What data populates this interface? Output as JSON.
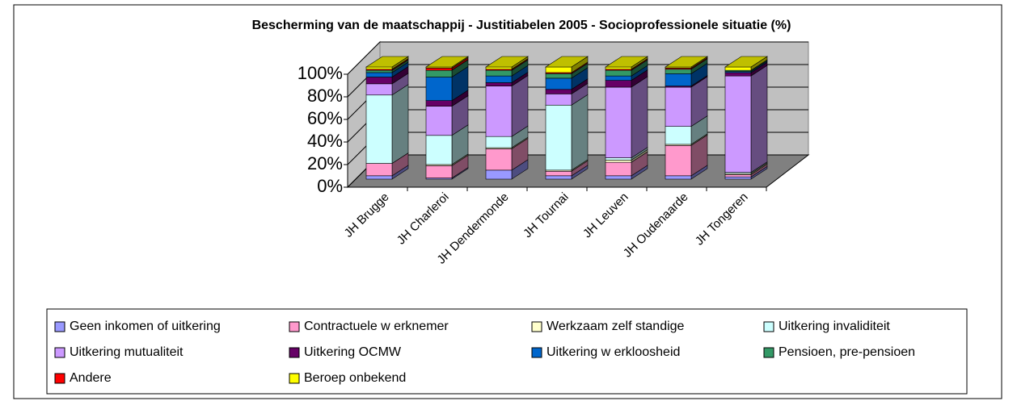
{
  "chart_data": {
    "type": "bar3d_stacked",
    "title": "Bescherming van de maatschappij - Justitiabelen 2005 - Socioprofessionele situatie (%)",
    "categories": [
      "JH Brugge",
      "JH Charleroi",
      "JH Dendermonde",
      "JH Tournai",
      "JH Leuven",
      "JH Oudenaarde",
      "JH Tongeren"
    ],
    "series": [
      {
        "name": "Geen inkomen of uitkering",
        "color": "#9999ff",
        "values": [
          3,
          1,
          8,
          3,
          3,
          3,
          2
        ]
      },
      {
        "name": "Contractuele w erknemer",
        "color": "#ff99cc",
        "values": [
          11,
          11,
          19,
          4,
          12,
          27,
          2
        ]
      },
      {
        "name": "Werkzaam zelf standige",
        "color": "#ffffcc",
        "values": [
          0,
          1,
          1,
          1,
          2,
          1,
          1
        ]
      },
      {
        "name": "Uitkering invaliditeit",
        "color": "#ccffff",
        "values": [
          61,
          26,
          10,
          58,
          2,
          16,
          1
        ]
      },
      {
        "name": "Uitkering mutualiteit",
        "color": "#cc99ff",
        "values": [
          10,
          26,
          45,
          10,
          63,
          35,
          86
        ]
      },
      {
        "name": "Uitkering OCMW",
        "color": "#660066",
        "values": [
          6,
          5,
          3,
          4,
          6,
          1,
          3
        ]
      },
      {
        "name": "Uitkering w erkloosheid",
        "color": "#0066cc",
        "values": [
          4,
          21,
          6,
          10,
          4,
          11,
          1
        ]
      },
      {
        "name": "Pensioen, pre-pensioen",
        "color": "#339966",
        "values": [
          2,
          6,
          5,
          4,
          5,
          4,
          1
        ]
      },
      {
        "name": "Andere",
        "color": "#ff0000",
        "values": [
          1,
          2,
          1,
          1,
          1,
          1,
          0
        ]
      },
      {
        "name": "Beroep onbekend",
        "color": "#ffff00",
        "values": [
          2,
          1,
          2,
          5,
          2,
          1,
          3
        ]
      }
    ],
    "ylim": [
      0,
      100
    ],
    "yticks": [
      {
        "value": 0,
        "label": "0%"
      },
      {
        "value": 20,
        "label": "20%"
      },
      {
        "value": 40,
        "label": "40%"
      },
      {
        "value": 60,
        "label": "60%"
      },
      {
        "value": 80,
        "label": "80%"
      },
      {
        "value": 100,
        "label": "100%"
      }
    ],
    "grid": true
  }
}
